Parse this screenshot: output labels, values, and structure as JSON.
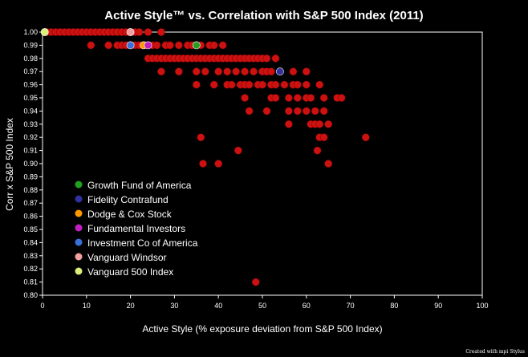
{
  "chart_data": {
    "type": "scatter",
    "title": "Active Style™ vs. Correlation with S&P 500 Index (2011)",
    "xlabel": "Active Style (% exposure deviation from S&P 500 Index)",
    "ylabel": "Corr x S&P 500 Index",
    "xlim": [
      0,
      100
    ],
    "ylim": [
      0.8,
      1.0
    ],
    "x_ticks": [
      "0",
      "10",
      "20",
      "30",
      "40",
      "50",
      "60",
      "70",
      "80",
      "90",
      "100"
    ],
    "y_ticks": [
      "0.80",
      "0.81",
      "0.82",
      "0.83",
      "0.84",
      "0.85",
      "0.86",
      "0.87",
      "0.88",
      "0.89",
      "0.90",
      "0.91",
      "0.92",
      "0.93",
      "0.94",
      "0.95",
      "0.96",
      "0.97",
      "0.98",
      "0.99",
      "1.00"
    ],
    "grid": false,
    "legend_position": "lower-left",
    "colors": {
      "background": "#000000",
      "funds": "#cc1111",
      "highlight_ring": "#ffffff"
    },
    "series": [
      {
        "name": "",
        "color": "#cc1111",
        "points": [
          [
            1,
            1.0
          ],
          [
            2,
            1.0
          ],
          [
            3,
            1.0
          ],
          [
            4,
            1.0
          ],
          [
            5,
            1.0
          ],
          [
            6,
            1.0
          ],
          [
            7,
            1.0
          ],
          [
            8,
            1.0
          ],
          [
            9,
            1.0
          ],
          [
            10,
            1.0
          ],
          [
            11,
            1.0
          ],
          [
            12,
            1.0
          ],
          [
            13,
            1.0
          ],
          [
            14,
            1.0
          ],
          [
            15,
            1.0
          ],
          [
            16,
            1.0
          ],
          [
            17,
            1.0
          ],
          [
            18,
            1.0
          ],
          [
            19,
            1.0
          ],
          [
            21,
            1.0
          ],
          [
            22,
            1.0
          ],
          [
            24,
            1.0
          ],
          [
            27,
            1.0
          ],
          [
            11,
            0.99
          ],
          [
            15,
            0.99
          ],
          [
            17,
            0.99
          ],
          [
            18,
            0.99
          ],
          [
            19,
            0.99
          ],
          [
            21,
            0.99
          ],
          [
            22,
            0.99
          ],
          [
            25,
            0.99
          ],
          [
            26,
            0.99
          ],
          [
            28,
            0.99
          ],
          [
            29,
            0.99
          ],
          [
            31,
            0.99
          ],
          [
            33,
            0.99
          ],
          [
            34,
            0.99
          ],
          [
            36,
            0.99
          ],
          [
            38,
            0.99
          ],
          [
            39,
            0.99
          ],
          [
            41,
            0.99
          ],
          [
            24,
            0.98
          ],
          [
            25,
            0.98
          ],
          [
            26,
            0.98
          ],
          [
            27,
            0.98
          ],
          [
            28,
            0.98
          ],
          [
            29,
            0.98
          ],
          [
            30,
            0.98
          ],
          [
            31,
            0.98
          ],
          [
            32,
            0.98
          ],
          [
            33,
            0.98
          ],
          [
            34,
            0.98
          ],
          [
            35,
            0.98
          ],
          [
            36,
            0.98
          ],
          [
            37,
            0.98
          ],
          [
            38,
            0.98
          ],
          [
            39,
            0.98
          ],
          [
            40,
            0.98
          ],
          [
            41,
            0.98
          ],
          [
            42,
            0.98
          ],
          [
            43,
            0.98
          ],
          [
            44,
            0.98
          ],
          [
            45,
            0.98
          ],
          [
            46,
            0.98
          ],
          [
            47,
            0.98
          ],
          [
            48,
            0.98
          ],
          [
            49,
            0.98
          ],
          [
            50,
            0.98
          ],
          [
            51,
            0.98
          ],
          [
            53,
            0.98
          ],
          [
            27,
            0.97
          ],
          [
            31,
            0.97
          ],
          [
            35,
            0.97
          ],
          [
            37,
            0.97
          ],
          [
            40,
            0.97
          ],
          [
            42,
            0.97
          ],
          [
            44,
            0.97
          ],
          [
            46,
            0.97
          ],
          [
            48,
            0.97
          ],
          [
            50,
            0.97
          ],
          [
            51,
            0.97
          ],
          [
            52,
            0.97
          ],
          [
            54,
            0.97
          ],
          [
            57,
            0.97
          ],
          [
            60,
            0.97
          ],
          [
            35,
            0.96
          ],
          [
            39,
            0.96
          ],
          [
            42,
            0.96
          ],
          [
            43,
            0.96
          ],
          [
            45,
            0.96
          ],
          [
            46,
            0.96
          ],
          [
            47,
            0.96
          ],
          [
            49,
            0.96
          ],
          [
            50,
            0.96
          ],
          [
            52,
            0.96
          ],
          [
            53,
            0.96
          ],
          [
            55,
            0.96
          ],
          [
            57,
            0.96
          ],
          [
            58,
            0.96
          ],
          [
            60,
            0.96
          ],
          [
            63,
            0.96
          ],
          [
            46,
            0.95
          ],
          [
            52,
            0.95
          ],
          [
            53,
            0.95
          ],
          [
            56,
            0.95
          ],
          [
            58,
            0.95
          ],
          [
            60,
            0.95
          ],
          [
            61,
            0.95
          ],
          [
            64,
            0.95
          ],
          [
            67,
            0.95
          ],
          [
            68,
            0.95
          ],
          [
            47,
            0.94
          ],
          [
            51,
            0.94
          ],
          [
            56,
            0.94
          ],
          [
            58,
            0.94
          ],
          [
            60,
            0.94
          ],
          [
            62,
            0.94
          ],
          [
            64,
            0.94
          ],
          [
            56,
            0.93
          ],
          [
            61,
            0.93
          ],
          [
            62,
            0.93
          ],
          [
            63,
            0.93
          ],
          [
            65,
            0.93
          ],
          [
            36,
            0.92
          ],
          [
            63,
            0.92
          ],
          [
            64,
            0.92
          ],
          [
            73.5,
            0.92
          ],
          [
            44.5,
            0.91
          ],
          [
            62.5,
            0.91
          ],
          [
            36.5,
            0.9
          ],
          [
            40,
            0.9
          ],
          [
            65,
            0.9
          ],
          [
            48.5,
            0.81
          ]
        ]
      },
      {
        "name": "Growth Fund of America",
        "color": "#22a022",
        "points": [
          [
            35,
            0.99
          ]
        ]
      },
      {
        "name": "Fidelity Contrafund",
        "color": "#3030a0",
        "points": [
          [
            54,
            0.97
          ]
        ]
      },
      {
        "name": "Dodge & Cox Stock",
        "color": "#ff9900",
        "points": [
          [
            23,
            0.99
          ]
        ]
      },
      {
        "name": "Fundamental Investors",
        "color": "#c020c0",
        "points": [
          [
            24,
            0.99
          ]
        ]
      },
      {
        "name": "Investment Co of America",
        "color": "#3a6fd8",
        "points": [
          [
            20,
            0.99
          ]
        ]
      },
      {
        "name": "Vanguard Windsor",
        "color": "#f4a0a0",
        "points": [
          [
            20,
            1.0
          ]
        ]
      },
      {
        "name": "Vanguard 500 Index",
        "color": "#d8f07a",
        "points": [
          [
            0.5,
            1.0
          ]
        ]
      }
    ]
  },
  "credit": "Created with mpi Stylus"
}
